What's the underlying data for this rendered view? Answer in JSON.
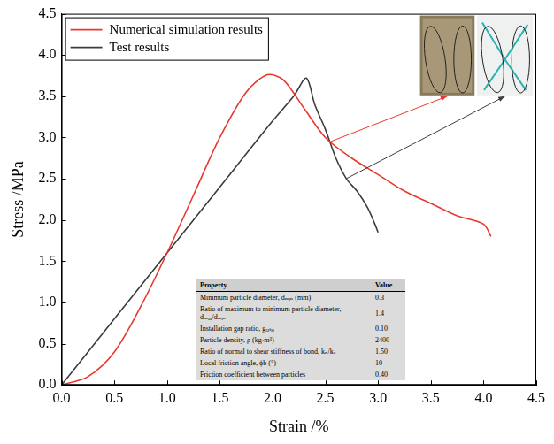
{
  "chart_data": {
    "type": "line",
    "xlabel": "Strain /%",
    "ylabel": "Stress /MPa",
    "xlim": [
      0,
      4.5
    ],
    "ylim": [
      0,
      4.5
    ],
    "xticks": [
      {
        "value": 0,
        "label": "0.0"
      },
      0.5,
      {
        "value": 1,
        "label": "1.0"
      },
      1.5,
      {
        "value": 2,
        "label": "2.0"
      },
      2.5,
      {
        "value": 3,
        "label": "3.0"
      },
      3.5,
      {
        "value": 4,
        "label": "4.0"
      },
      4.5
    ],
    "yticks": [
      {
        "value": 0,
        "label": "0.0"
      },
      0.5,
      {
        "value": 1,
        "label": "1.0"
      },
      1.5,
      {
        "value": 2,
        "label": "2.0"
      },
      2.5,
      {
        "value": 3,
        "label": "3.0"
      },
      3.5,
      {
        "value": 4,
        "label": "4.0"
      },
      4.5
    ],
    "grid": false,
    "legend": "upper left",
    "series": [
      {
        "name": "Numerical simulation results",
        "color": "#e8392f",
        "x": [
          0,
          0.25,
          0.5,
          0.75,
          1.0,
          1.25,
          1.5,
          1.75,
          1.95,
          2.1,
          2.3,
          2.5,
          2.75,
          3.0,
          3.25,
          3.5,
          3.75,
          4.0,
          4.07
        ],
        "values": [
          0,
          0.1,
          0.4,
          0.95,
          1.6,
          2.3,
          3.0,
          3.55,
          3.76,
          3.7,
          3.35,
          3.0,
          2.75,
          2.55,
          2.35,
          2.2,
          2.05,
          1.95,
          1.8
        ]
      },
      {
        "name": "Test results",
        "color": "#3c3c3c",
        "x": [
          0,
          0.5,
          1.0,
          1.5,
          2.0,
          2.2,
          2.32,
          2.4,
          2.5,
          2.6,
          2.7,
          2.8,
          2.9,
          2.97,
          3.0
        ],
        "values": [
          0,
          0.8,
          1.6,
          2.4,
          3.2,
          3.5,
          3.72,
          3.4,
          3.1,
          2.75,
          2.5,
          2.35,
          2.15,
          1.95,
          1.85
        ]
      }
    ],
    "table": {
      "header": [
        "Property",
        "Value"
      ],
      "rows": [
        [
          "Minimum particle diameter, dₘᵢₙ (mm)",
          "0.3"
        ],
        [
          "Ratio of maximum to minimum particle diameter, dₘₐₓ/dₘᵢₙ",
          "1.4"
        ],
        [
          "Installation gap ratio, gᵣₐₜᵢₒ",
          "0.10"
        ],
        [
          "Particle density, ρ (kg·m³)",
          "2400"
        ],
        [
          "Ratio of normal to shear stiffness of bond, kₙ/kₛ",
          "1.50"
        ],
        [
          "Local friction angle, ϕb (°)",
          "10"
        ],
        [
          "Friction coefficient between particles",
          "0.40"
        ]
      ]
    }
  }
}
